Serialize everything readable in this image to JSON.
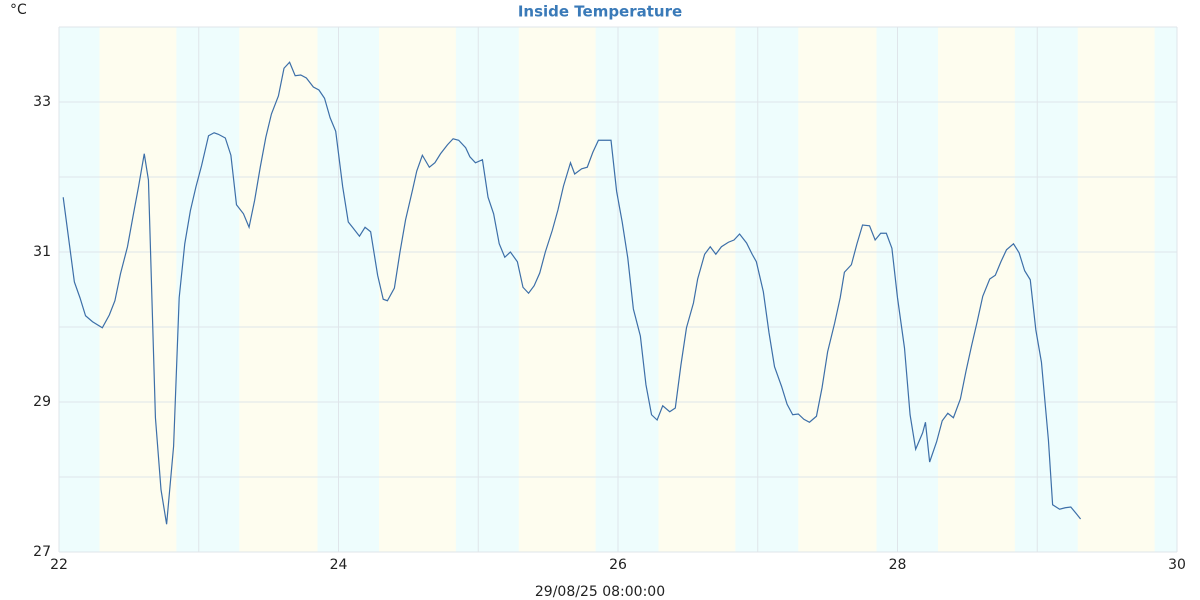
{
  "chart_data": {
    "type": "line",
    "title": "Inside Temperature",
    "unit_label": "°C",
    "xlabel": "29/08/25 08:00:00",
    "color": "#3d6fa8",
    "grid": true,
    "night_color": "#eefdfd",
    "day_color": "#fefdef",
    "xlim": [
      22,
      30
    ],
    "xticks": [
      22,
      24,
      26,
      28,
      30
    ],
    "xgrid": [
      23,
      25,
      27,
      29
    ],
    "ylim": [
      27,
      34
    ],
    "yticks": [
      27,
      29,
      31,
      33
    ],
    "ygrid": [
      28,
      30,
      32,
      34
    ],
    "night_bands": [
      [
        22,
        22.29
      ],
      [
        22.84,
        23.29
      ],
      [
        23.85,
        24.29
      ],
      [
        24.84,
        25.29
      ],
      [
        25.84,
        26.29
      ],
      [
        26.84,
        27.29
      ],
      [
        27.85,
        28.29
      ],
      [
        28.84,
        29.29
      ],
      [
        29.84,
        30
      ]
    ],
    "x": [
      22.03,
      22.11,
      22.15,
      22.19,
      22.24,
      22.31,
      22.36,
      22.4,
      22.44,
      22.49,
      22.53,
      22.57,
      22.61,
      22.64,
      22.69,
      22.73,
      22.77,
      22.82,
      22.86,
      22.9,
      22.94,
      22.98,
      23.02,
      23.07,
      23.11,
      23.14,
      23.19,
      23.23,
      23.27,
      23.32,
      23.36,
      23.4,
      23.44,
      23.48,
      23.52,
      23.57,
      23.61,
      23.65,
      23.69,
      23.73,
      23.77,
      23.82,
      23.86,
      23.9,
      23.94,
      23.98,
      24.03,
      24.07,
      24.1,
      24.15,
      24.19,
      24.23,
      24.28,
      24.32,
      24.35,
      24.4,
      24.44,
      24.48,
      24.53,
      24.56,
      24.6,
      24.65,
      24.69,
      24.73,
      24.78,
      24.82,
      24.86,
      24.91,
      24.94,
      24.98,
      25.03,
      25.07,
      25.11,
      25.15,
      25.19,
      25.23,
      25.28,
      25.32,
      25.36,
      25.4,
      25.44,
      25.48,
      25.53,
      25.57,
      25.61,
      25.66,
      25.69,
      25.74,
      25.78,
      25.82,
      25.86,
      25.91,
      25.95,
      25.99,
      26.03,
      26.07,
      26.11,
      26.16,
      26.2,
      26.24,
      26.28,
      26.32,
      26.37,
      26.41,
      26.45,
      26.49,
      26.54,
      26.57,
      26.62,
      26.66,
      26.7,
      26.74,
      26.79,
      26.83,
      26.87,
      26.92,
      26.96,
      26.99,
      27.04,
      27.08,
      27.12,
      27.17,
      27.21,
      27.25,
      27.29,
      27.33,
      27.37,
      27.42,
      27.46,
      27.5,
      27.55,
      27.59,
      27.62,
      27.67,
      27.71,
      27.75,
      27.8,
      27.84,
      27.88,
      27.92,
      27.96,
      28.0,
      28.05,
      28.09,
      28.13,
      28.18,
      28.2,
      28.23,
      28.28,
      28.32,
      28.36,
      28.4,
      28.45,
      28.49,
      28.53,
      28.57,
      28.61,
      28.66,
      28.7,
      28.74,
      28.78,
      28.83,
      28.87,
      28.91,
      28.95,
      28.99,
      29.03,
      29.08,
      29.11,
      29.16,
      29.2,
      29.24,
      29.28,
      29.31
    ],
    "values": [
      31.73,
      30.6,
      30.39,
      30.15,
      30.07,
      29.99,
      30.16,
      30.35,
      30.71,
      31.07,
      31.48,
      31.88,
      32.31,
      31.96,
      28.79,
      27.83,
      27.37,
      28.41,
      30.39,
      31.11,
      31.55,
      31.87,
      32.15,
      32.55,
      32.59,
      32.57,
      32.52,
      32.29,
      31.63,
      31.51,
      31.33,
      31.69,
      32.13,
      32.53,
      32.84,
      33.08,
      33.45,
      33.53,
      33.35,
      33.36,
      33.32,
      33.2,
      33.16,
      33.05,
      32.79,
      32.61,
      31.87,
      31.4,
      31.33,
      31.21,
      31.33,
      31.27,
      30.69,
      30.37,
      30.35,
      30.52,
      31.0,
      31.43,
      31.83,
      32.08,
      32.29,
      32.13,
      32.19,
      32.31,
      32.43,
      32.51,
      32.49,
      32.39,
      32.27,
      32.19,
      32.23,
      31.73,
      31.51,
      31.11,
      30.93,
      31.0,
      30.87,
      30.53,
      30.45,
      30.55,
      30.72,
      31.0,
      31.29,
      31.56,
      31.88,
      32.19,
      32.04,
      32.11,
      32.13,
      32.33,
      32.49,
      32.49,
      32.49,
      31.81,
      31.4,
      30.92,
      30.24,
      29.88,
      29.23,
      28.83,
      28.76,
      28.95,
      28.87,
      28.92,
      29.49,
      29.99,
      30.32,
      30.64,
      30.97,
      31.07,
      30.97,
      31.07,
      31.13,
      31.16,
      31.24,
      31.12,
      30.97,
      30.87,
      30.47,
      29.93,
      29.47,
      29.21,
      28.97,
      28.83,
      28.84,
      28.77,
      28.73,
      28.81,
      29.19,
      29.67,
      30.05,
      30.39,
      30.73,
      30.83,
      31.11,
      31.36,
      31.35,
      31.16,
      31.25,
      31.25,
      31.05,
      30.39,
      29.72,
      28.83,
      28.37,
      28.59,
      28.73,
      28.2,
      28.47,
      28.75,
      28.85,
      28.79,
      29.04,
      29.41,
      29.75,
      30.07,
      30.41,
      30.64,
      30.69,
      30.87,
      31.03,
      31.11,
      30.99,
      30.75,
      30.63,
      29.96,
      29.53,
      28.49,
      27.63,
      27.57,
      27.59,
      27.6,
      27.51,
      27.44
    ]
  }
}
